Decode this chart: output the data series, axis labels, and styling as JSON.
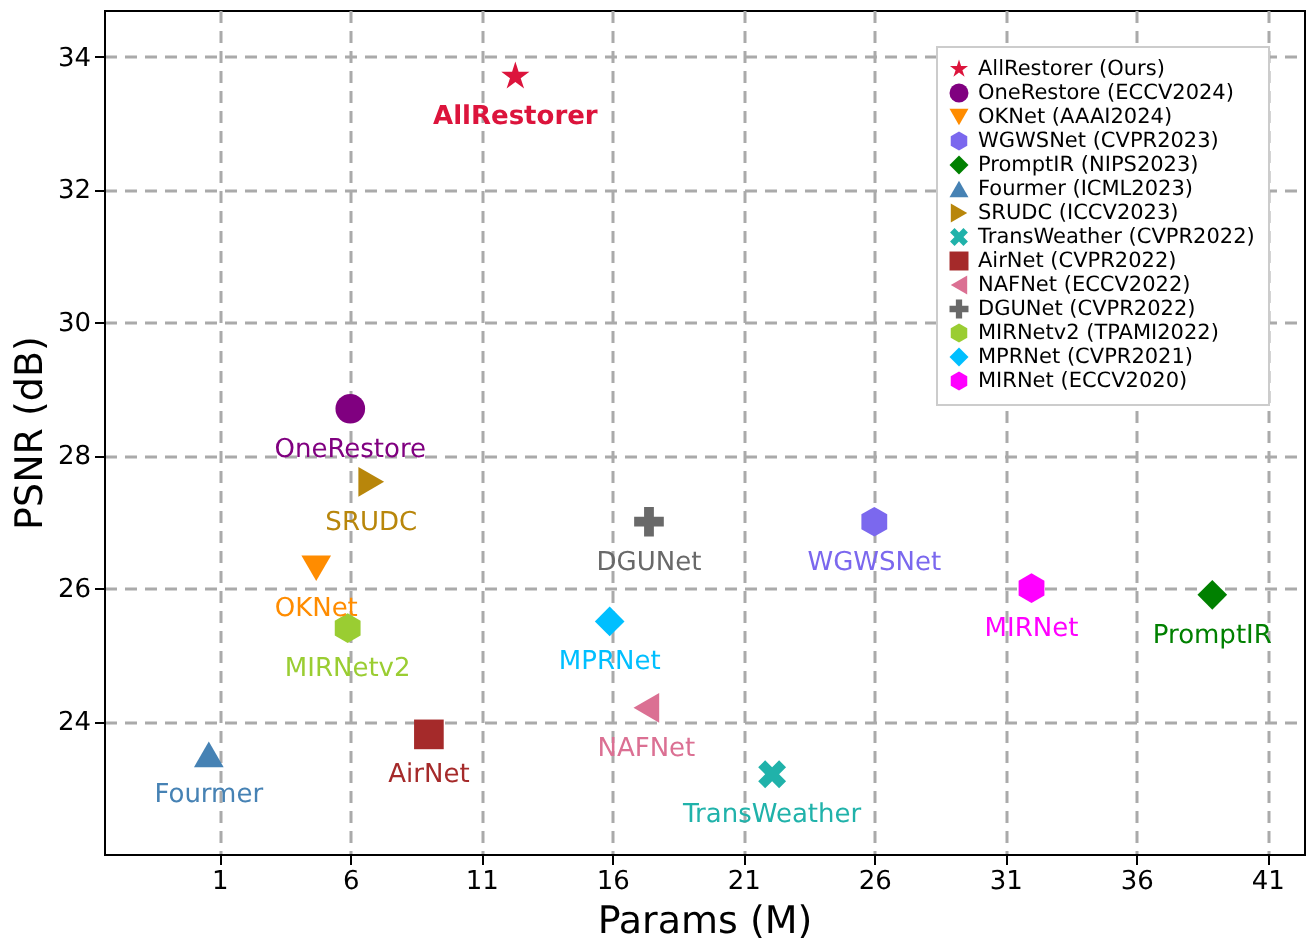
{
  "chart_data": {
    "type": "scatter",
    "xlabel": "Params (M)",
    "ylabel": "PSNR (dB)",
    "xlim": [
      -3.4,
      42.4
    ],
    "ylim": [
      22.0,
      34.7
    ],
    "xticks": [
      1,
      6,
      11,
      16,
      21,
      26,
      31,
      36,
      41
    ],
    "yticks": [
      24,
      26,
      28,
      30,
      32,
      34
    ],
    "grid": true,
    "legend": "top right",
    "series": [
      {
        "name": "AllRestorer (Ours)",
        "color": "#dc143c",
        "marker": "star",
        "x": [
          12.3
        ],
        "values": [
          33.7
        ]
      },
      {
        "name": "OneRestore (ECCV2024)",
        "color": "#800080",
        "marker": "circle",
        "x": [
          6.0
        ],
        "values": [
          28.7
        ]
      },
      {
        "name": "OKNet (AAAI2024)",
        "color": "#ff8c00",
        "marker": "triangle-down",
        "x": [
          4.7
        ],
        "values": [
          26.3
        ]
      },
      {
        "name": "WGWSNet (CVPR2023)",
        "color": "#7b68ee",
        "x": [
          26.0
        ],
        "values": [
          27.0
        ]
      },
      {
        "name": "PromptIR (NIPS2023)",
        "color": "#008000",
        "marker": "diamond",
        "x": [
          38.9
        ],
        "values": [
          25.9
        ]
      },
      {
        "name": "Fourmer (ICML2023)",
        "color": "#4682b4",
        "marker": "triangle",
        "x": [
          0.6
        ],
        "values": [
          23.5
        ]
      },
      {
        "name": "SRUDC (ICCV2023)",
        "color": "#b8860b",
        "marker": "triangle-right",
        "x": [
          6.8
        ],
        "values": [
          27.6
        ]
      },
      {
        "name": "TransWeather (CVPR2022)",
        "color": "#20b2aa",
        "marker": "x",
        "x": [
          22.1
        ],
        "values": [
          23.2
        ]
      },
      {
        "name": "AirNet (CVPR2022)",
        "color": "#a52a2a",
        "marker": "square",
        "x": [
          9.0
        ],
        "values": [
          23.8
        ]
      },
      {
        "name": "NAFNet (ECCV2022)",
        "color": "#db7093",
        "marker": "triangle-left",
        "x": [
          17.3
        ],
        "values": [
          24.2
        ]
      },
      {
        "name": "DGUNet (CVPR2022)",
        "color": "#696969",
        "marker": "cross",
        "x": [
          17.4
        ],
        "values": [
          27.0
        ]
      },
      {
        "name": "MIRNetv2 (TPAMI2022)",
        "color": "#9acd32",
        "x": [
          5.9
        ],
        "values": [
          25.4
        ]
      },
      {
        "name": "MPRNet (CVPR2021)",
        "color": "#00bfff",
        "marker": "diamond",
        "x": [
          15.9
        ],
        "values": [
          25.5
        ]
      },
      {
        "name": "MIRNet (ECCV2020)",
        "color": "#ff00ff",
        "x": [
          32.0
        ],
        "values": [
          26.0
        ]
      }
    ],
    "annotations": [
      {
        "text": "AllRestorer",
        "x": 12.3,
        "y": 33.7
      },
      {
        "text": "OneRestore",
        "x": 6.0,
        "y": 28.7
      },
      {
        "text": "OKNet",
        "x": 4.7,
        "y": 26.3
      },
      {
        "text": "WGWSNet",
        "x": 26.0,
        "y": 27.0
      },
      {
        "text": "PromptIR",
        "x": 38.9,
        "y": 25.9
      },
      {
        "text": "Fourmer",
        "x": 0.6,
        "y": 23.5
      },
      {
        "text": "SRUDC",
        "x": 6.8,
        "y": 27.6
      },
      {
        "text": "TransWeather",
        "x": 22.1,
        "y": 23.2
      },
      {
        "text": "AirNet",
        "x": 9.0,
        "y": 23.8
      },
      {
        "text": "NAFNet",
        "x": 17.3,
        "y": 24.2
      },
      {
        "text": "DGUNet",
        "x": 17.4,
        "y": 27.0
      },
      {
        "text": "MIRNetv2",
        "x": 5.9,
        "y": 25.4
      },
      {
        "text": "MPRNet",
        "x": 15.9,
        "y": 25.5
      },
      {
        "text": "MIRNet",
        "x": 32.0,
        "y": 26.0
      }
    ]
  }
}
